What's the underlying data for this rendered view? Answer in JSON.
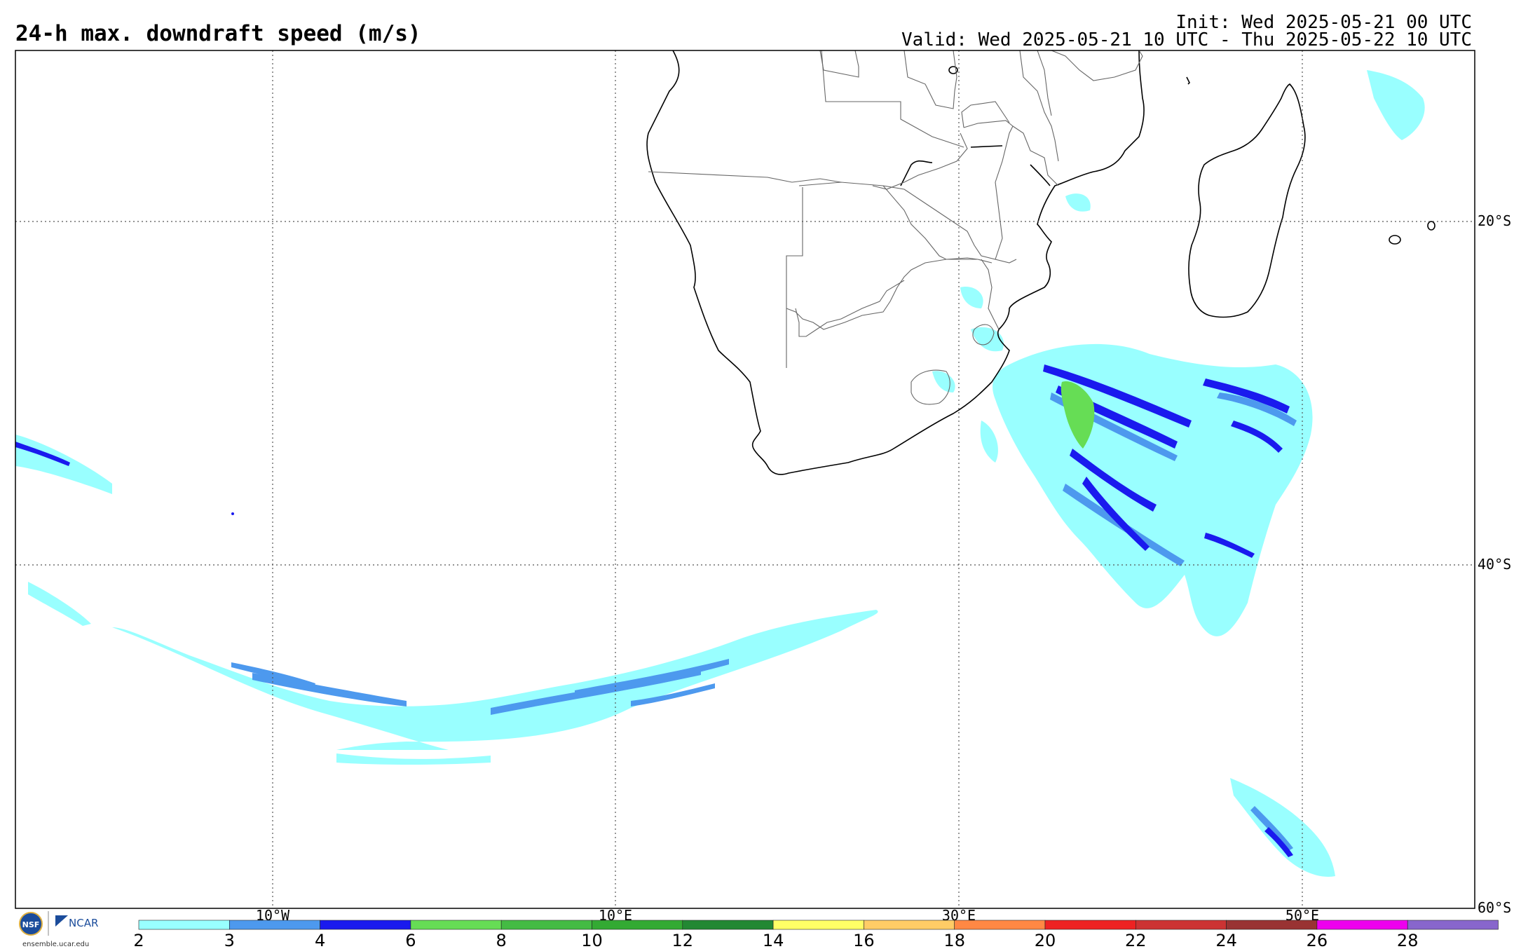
{
  "title": "24-h max. downdraft speed (m/s)",
  "init_line": "Init: Wed 2025-05-21 00 UTC",
  "valid_line": "Valid: Wed 2025-05-21 10 UTC - Thu 2025-05-22 10 UTC",
  "lon_labels": [
    "10°W",
    "10°E",
    "30°E",
    "50°E"
  ],
  "lat_labels": [
    "20°S",
    "40°S",
    "60°S"
  ],
  "colorbar": {
    "ticks": [
      "2",
      "3",
      "4",
      "6",
      "8",
      "10",
      "12",
      "14",
      "16",
      "18",
      "20",
      "22",
      "24",
      "26",
      "28"
    ],
    "colors": [
      "#99ffff",
      "#4d99ee",
      "#1a1aee",
      "#66dd55",
      "#44bb44",
      "#33aa33",
      "#228833",
      "#ffff66",
      "#ffcc66",
      "#ff8844",
      "#ee2222",
      "#cc3333",
      "#993333",
      "#ee00ee",
      "#8866cc"
    ]
  },
  "logo": {
    "nsf": "NSF",
    "ncar": "NCAR",
    "url": "ensemble.ucar.edu"
  },
  "colors": {
    "light_cyan": "#99ffff",
    "medium_blue": "#4d99ee",
    "dark_blue": "#1a1aee",
    "green": "#66dd55"
  }
}
